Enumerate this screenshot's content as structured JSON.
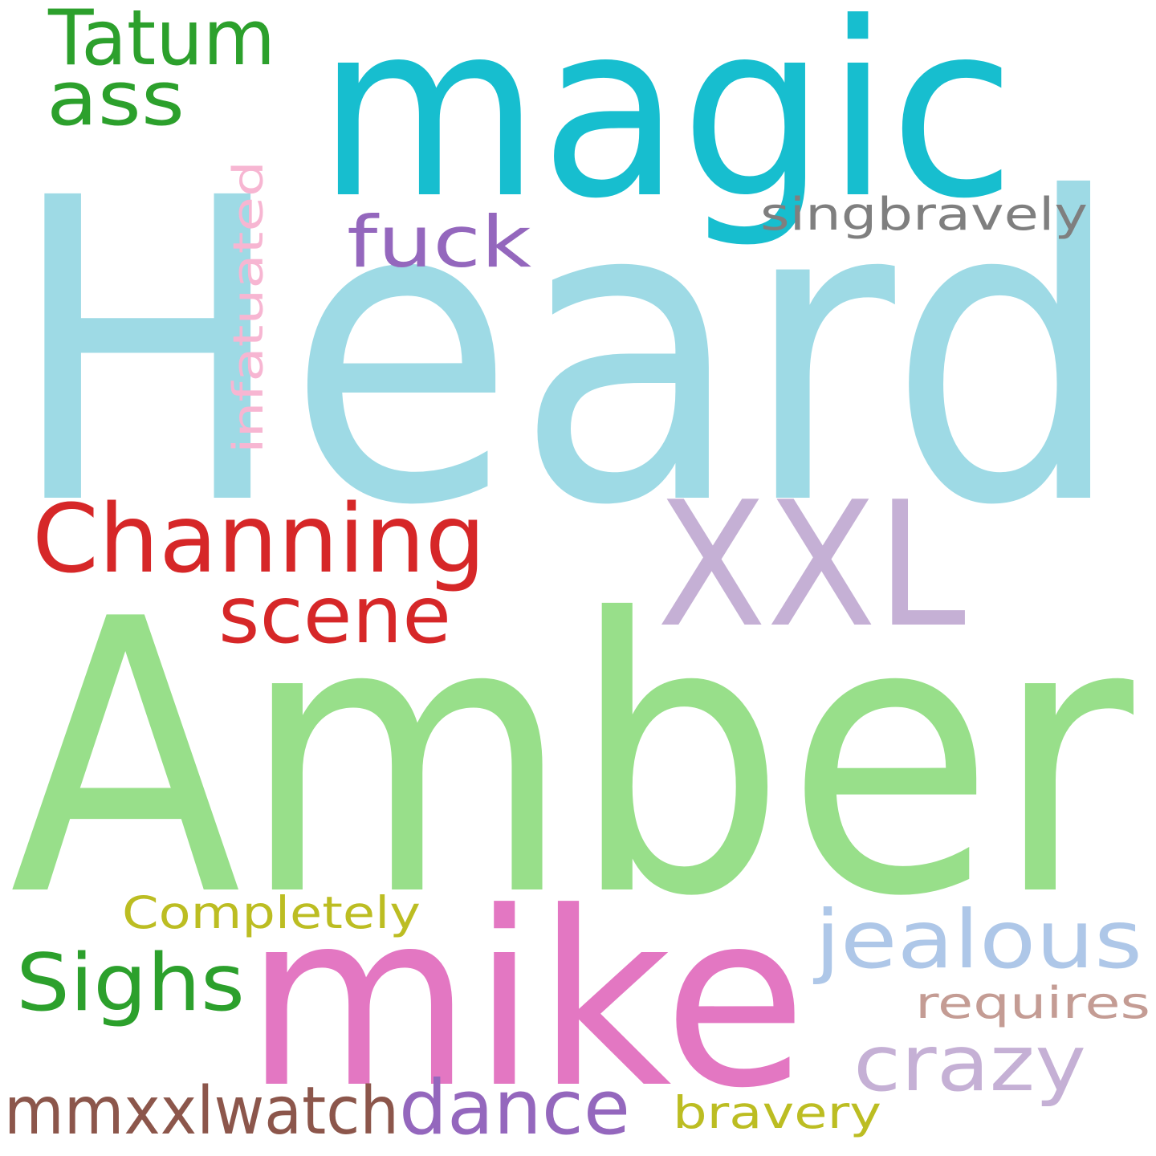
{
  "words": [
    {
      "id": "heard",
      "text": "Heard",
      "color": "#9edae5"
    },
    {
      "id": "amber",
      "text": "Amber",
      "color": "#98df8a"
    },
    {
      "id": "magic",
      "text": "magic",
      "color": "#17becf"
    },
    {
      "id": "mike",
      "text": "mike",
      "color": "#e377c2"
    },
    {
      "id": "xxl",
      "text": "XXL",
      "color": "#c5b0d5"
    },
    {
      "id": "channing",
      "text": "Channing",
      "color": "#d62728"
    },
    {
      "id": "scene",
      "text": "scene",
      "color": "#d62728"
    },
    {
      "id": "tatum",
      "text": "Tatum",
      "color": "#2ca02c"
    },
    {
      "id": "ass",
      "text": "ass",
      "color": "#2ca02c"
    },
    {
      "id": "sighs",
      "text": "Sighs",
      "color": "#2ca02c"
    },
    {
      "id": "jealous",
      "text": "jealous",
      "color": "#aec7e8"
    },
    {
      "id": "crazy",
      "text": "crazy",
      "color": "#c5b0d5"
    },
    {
      "id": "dance",
      "text": "dance",
      "color": "#9467bd"
    },
    {
      "id": "mmxxlwatch",
      "text": "mmxxlwatch",
      "color": "#8c564b"
    },
    {
      "id": "fuck",
      "text": "fuck",
      "color": "#9467bd"
    },
    {
      "id": "singbravely",
      "text": "singbravely",
      "color": "#7f7f7f"
    },
    {
      "id": "infatuated",
      "text": "infatuated",
      "color": "#f7b6d2"
    },
    {
      "id": "completely",
      "text": "Completely",
      "color": "#bcbd22"
    },
    {
      "id": "requires",
      "text": "requires",
      "color": "#c49c94"
    },
    {
      "id": "bravery",
      "text": "bravery",
      "color": "#bcbd22"
    }
  ]
}
